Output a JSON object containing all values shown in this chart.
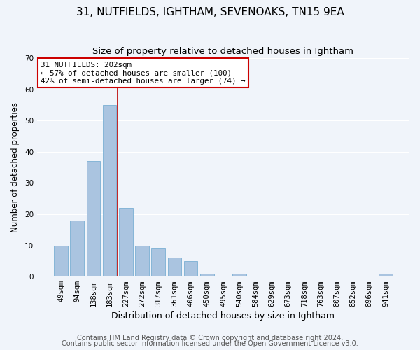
{
  "title": "31, NUTFIELDS, IGHTHAM, SEVENOAKS, TN15 9EA",
  "subtitle": "Size of property relative to detached houses in Ightham",
  "xlabel": "Distribution of detached houses by size in Ightham",
  "ylabel": "Number of detached properties",
  "bar_labels": [
    "49sqm",
    "94sqm",
    "138sqm",
    "183sqm",
    "227sqm",
    "272sqm",
    "317sqm",
    "361sqm",
    "406sqm",
    "450sqm",
    "495sqm",
    "540sqm",
    "584sqm",
    "629sqm",
    "673sqm",
    "718sqm",
    "763sqm",
    "807sqm",
    "852sqm",
    "896sqm",
    "941sqm"
  ],
  "bar_values": [
    10,
    18,
    37,
    55,
    22,
    10,
    9,
    6,
    5,
    1,
    0,
    1,
    0,
    0,
    0,
    0,
    0,
    0,
    0,
    0,
    1
  ],
  "bar_color": "#aac4e0",
  "bar_edgecolor": "#7aafd4",
  "red_line_index": 3,
  "annotation_text": "31 NUTFIELDS: 202sqm\n← 57% of detached houses are smaller (100)\n42% of semi-detached houses are larger (74) →",
  "annotation_box_color": "#ffffff",
  "annotation_box_edgecolor": "#cc0000",
  "ylim": [
    0,
    70
  ],
  "yticks": [
    0,
    10,
    20,
    30,
    40,
    50,
    60,
    70
  ],
  "footer_line1": "Contains HM Land Registry data © Crown copyright and database right 2024.",
  "footer_line2": "Contains public sector information licensed under the Open Government Licence v3.0.",
  "background_color": "#f0f4fa",
  "plot_background_color": "#f0f4fa",
  "grid_color": "#ffffff",
  "title_fontsize": 11,
  "subtitle_fontsize": 9.5,
  "footer_fontsize": 7,
  "tick_fontsize": 7.5,
  "ylabel_fontsize": 8.5,
  "xlabel_fontsize": 9
}
